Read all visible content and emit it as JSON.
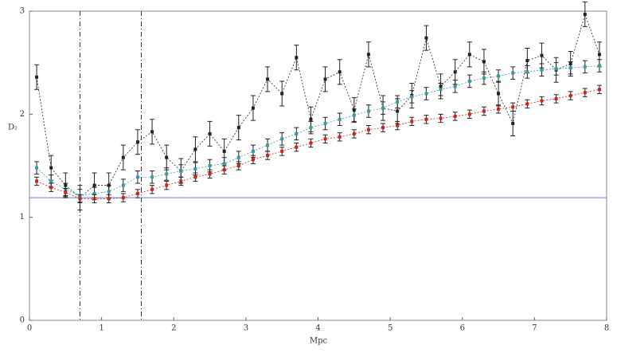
{
  "chart_data": {
    "type": "errorbar",
    "xlabel": "Mpc",
    "ylabel": "D₂",
    "xlim": [
      0,
      8
    ],
    "xticks": [
      0,
      1,
      2,
      3,
      4,
      5,
      6,
      7,
      8
    ],
    "ylim": [
      0,
      3
    ],
    "yticks": [
      0,
      1,
      2,
      3
    ],
    "hline": 1.19,
    "hline_color": "#6a78e0",
    "vlines": [
      0.7,
      1.55
    ],
    "x": [
      0.1,
      0.3,
      0.5,
      0.7,
      0.9,
      1.1,
      1.3,
      1.5,
      1.7,
      1.9,
      2.1,
      2.3,
      2.5,
      2.7,
      2.9,
      3.1,
      3.3,
      3.5,
      3.7,
      3.9,
      4.1,
      4.3,
      4.5,
      4.7,
      4.9,
      5.1,
      5.3,
      5.5,
      5.7,
      5.9,
      6.1,
      6.3,
      6.5,
      6.7,
      6.9,
      7.1,
      7.3,
      7.5,
      7.7,
      7.9
    ],
    "series": [
      {
        "color": "#222222",
        "error": 0.12,
        "values": [
          2.36,
          1.48,
          1.31,
          1.19,
          1.31,
          1.31,
          1.58,
          1.73,
          1.83,
          1.58,
          1.45,
          1.66,
          1.81,
          1.64,
          1.87,
          2.06,
          2.34,
          2.2,
          2.55,
          1.95,
          2.34,
          2.41,
          2.04,
          2.58,
          2.06,
          2.03,
          2.18,
          2.74,
          2.27,
          2.41,
          2.58,
          2.51,
          2.2,
          1.91,
          2.52,
          2.57,
          2.43,
          2.49,
          2.97,
          2.58
        ]
      },
      {
        "color": "#3a9aa0",
        "error": 0.06,
        "values": [
          1.48,
          1.35,
          1.27,
          1.21,
          1.23,
          1.25,
          1.31,
          1.39,
          1.39,
          1.42,
          1.45,
          1.47,
          1.5,
          1.52,
          1.58,
          1.64,
          1.7,
          1.76,
          1.81,
          1.87,
          1.91,
          1.95,
          1.99,
          2.03,
          2.06,
          2.12,
          2.17,
          2.2,
          2.24,
          2.27,
          2.32,
          2.35,
          2.37,
          2.4,
          2.41,
          2.43,
          2.44,
          2.45,
          2.46,
          2.47
        ]
      },
      {
        "color": "#d02020",
        "error": 0.04,
        "values": [
          1.35,
          1.29,
          1.24,
          1.18,
          1.18,
          1.18,
          1.19,
          1.23,
          1.27,
          1.31,
          1.35,
          1.39,
          1.42,
          1.46,
          1.5,
          1.56,
          1.6,
          1.64,
          1.68,
          1.72,
          1.76,
          1.78,
          1.81,
          1.85,
          1.87,
          1.89,
          1.93,
          1.95,
          1.96,
          1.98,
          2.0,
          2.03,
          2.05,
          2.07,
          2.1,
          2.13,
          2.15,
          2.18,
          2.21,
          2.24
        ]
      }
    ]
  }
}
